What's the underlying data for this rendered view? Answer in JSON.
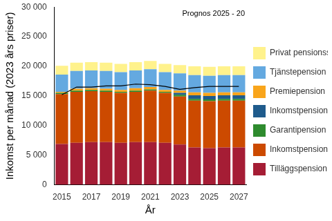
{
  "chart_data": {
    "type": "bar",
    "stacked": true,
    "annotation": "Prognos 2025 - 20",
    "x_label": "År",
    "y_label": "Inkomst per månad (2023 års priser)",
    "categories": [
      "2015",
      null,
      "2017",
      null,
      "2019",
      null,
      "2021",
      null,
      "2023",
      null,
      "2025",
      null,
      "2027"
    ],
    "series": [
      {
        "name": "Tilläggspension",
        "color": "#a51d35",
        "values": [
          6900,
          7100,
          7200,
          7200,
          7100,
          7200,
          7200,
          7100,
          6800,
          6300,
          6200,
          6300,
          6300
        ]
      },
      {
        "name": "Inkomstpension",
        "color": "#cc4a00",
        "values": [
          8400,
          8600,
          8600,
          8500,
          8400,
          8500,
          8700,
          8400,
          8100,
          7900,
          7900,
          7900,
          7900
        ]
      },
      {
        "name": "Garantipension",
        "color": "#2e8b2e",
        "values": [
          200,
          200,
          200,
          200,
          200,
          200,
          200,
          200,
          300,
          300,
          300,
          300,
          300
        ]
      },
      {
        "name": "Inkomstpensionstillägg",
        "color": "#1f5b8c",
        "values": [
          0,
          0,
          0,
          0,
          0,
          0,
          0,
          0,
          300,
          600,
          600,
          600,
          600
        ]
      },
      {
        "name": "Premiepension",
        "color": "#f9a51b",
        "values": [
          200,
          300,
          300,
          300,
          300,
          400,
          400,
          300,
          400,
          500,
          500,
          500,
          500
        ]
      },
      {
        "name": "Tjänstepension",
        "color": "#64a9e0",
        "values": [
          2900,
          3000,
          3000,
          3000,
          3000,
          3000,
          3000,
          3000,
          2900,
          2900,
          2900,
          2900,
          2900
        ]
      },
      {
        "name": "Privat pensionssparande (IPS)",
        "color": "#fff28c",
        "values": [
          1500,
          1400,
          1400,
          1400,
          1400,
          1400,
          1400,
          1400,
          1400,
          1500,
          1500,
          1500,
          1500
        ]
      },
      {
        "type": "line",
        "color": "#000000",
        "values": [
          15200,
          16500,
          16500,
          16700,
          16700,
          17000,
          16900,
          16600,
          16100,
          16400,
          16600,
          16600,
          16600
        ]
      }
    ],
    "ylim": [
      0,
      30000
    ],
    "yticks": [
      0,
      {
        "value": 5000,
        "label": "5 000"
      },
      {
        "value": 10000,
        "label": "10 000"
      },
      {
        "value": 15000,
        "label": "15 000"
      },
      {
        "value": 20000,
        "label": "20 000"
      },
      {
        "value": 25000,
        "label": "25 000"
      },
      {
        "value": 30000,
        "label": "30 000"
      }
    ],
    "grid": false,
    "legend": "right"
  }
}
